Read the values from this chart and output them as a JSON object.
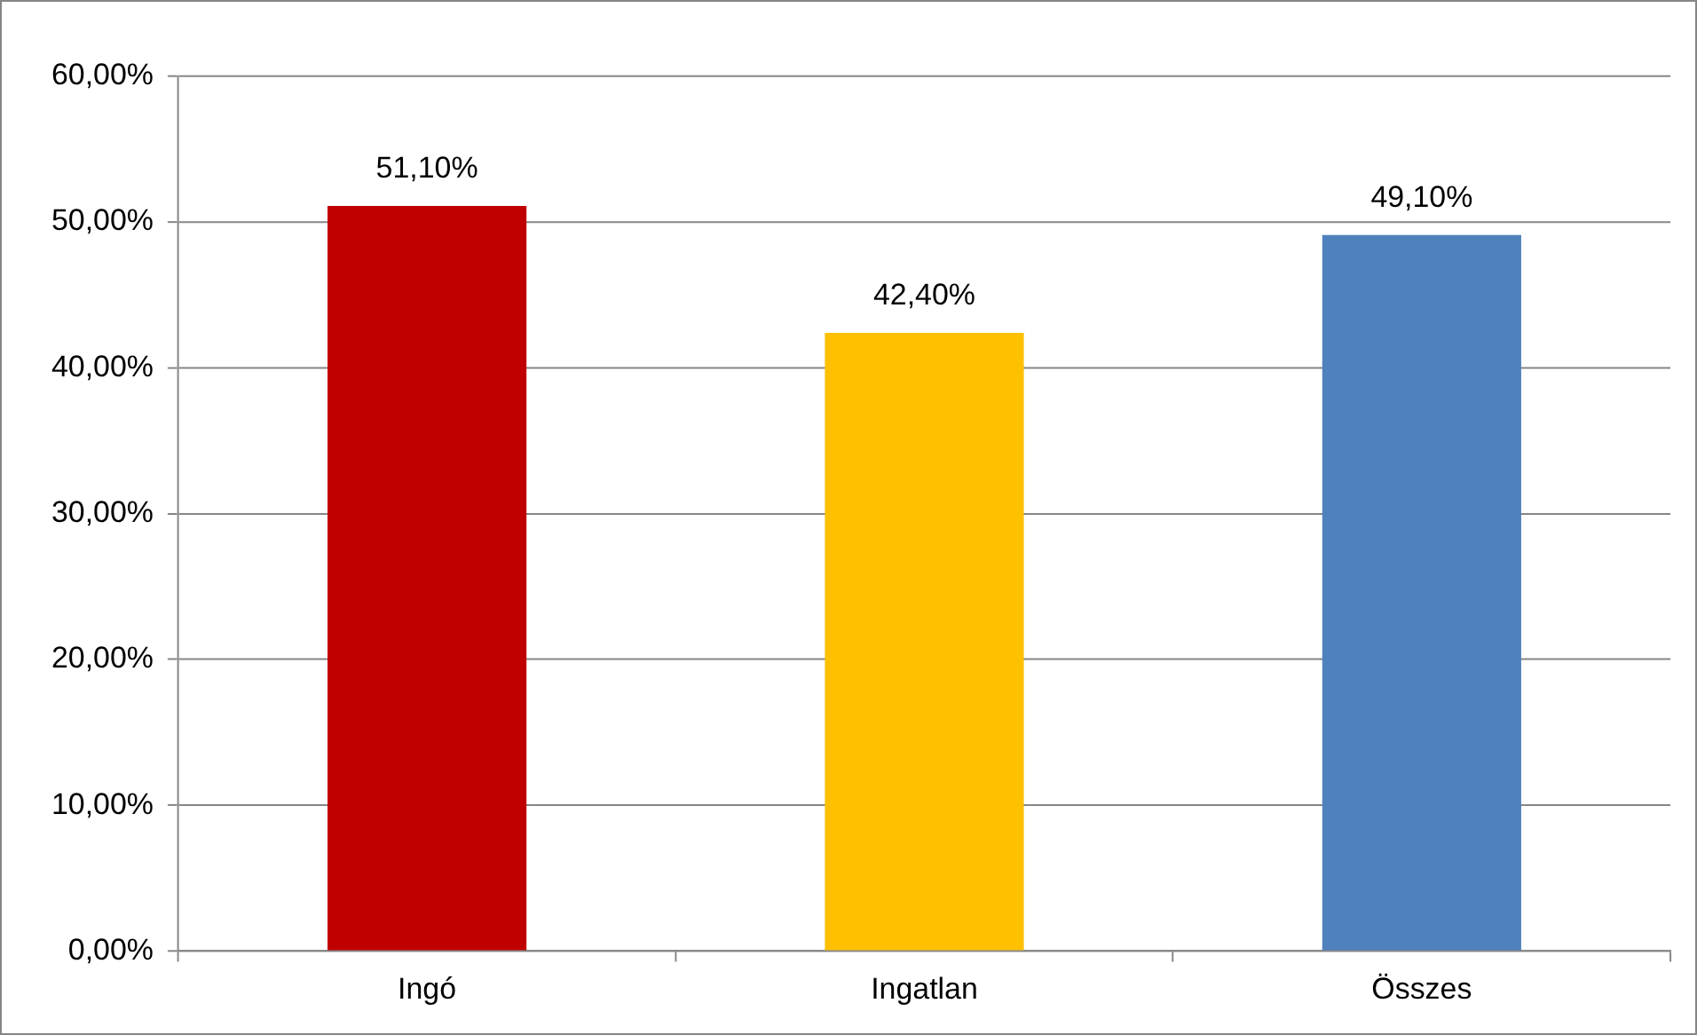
{
  "chart_data": {
    "type": "bar",
    "categories": [
      "Ingó",
      "Ingatlan",
      "Összes"
    ],
    "values": [
      51.1,
      42.4,
      49.1
    ],
    "colors": [
      "#c00000",
      "#ffc000",
      "#4f81bd"
    ],
    "value_labels": [
      "51,10%",
      "42,40%",
      "49,10%"
    ],
    "ylim": [
      0,
      60
    ],
    "yticks": [
      {
        "value": 0,
        "label": "0,00%"
      },
      {
        "value": 10,
        "label": "10,00%"
      },
      {
        "value": 20,
        "label": "20,00%"
      },
      {
        "value": 30,
        "label": "30,00%"
      },
      {
        "value": 40,
        "label": "40,00%"
      },
      {
        "value": 50,
        "label": "50,00%"
      },
      {
        "value": 60,
        "label": "60,00%"
      }
    ],
    "grid": "y",
    "legend": false
  }
}
